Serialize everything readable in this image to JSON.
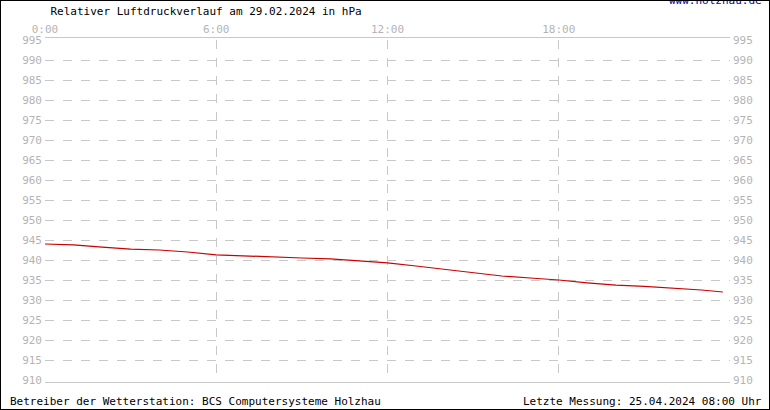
{
  "chart_data": {
    "type": "line",
    "title": "Relativer Luftdruckverlauf am 29.02.2024 in hPa",
    "annotations": [
      "www.holzhau.de",
      "Betreiber der Wetterstation: BCS Computersysteme Holzhau",
      "Letzte Messung: 25.04.2024 08:00 Uhr"
    ],
    "x": [
      0,
      1,
      2,
      3,
      4,
      5,
      6,
      7,
      8,
      9,
      10,
      11,
      12,
      13,
      14,
      15,
      16,
      17,
      18,
      19,
      20,
      21,
      22,
      23,
      23.75
    ],
    "series": [
      {
        "color": "#cc0000",
        "values": [
          944,
          943.8,
          943.2,
          942.7,
          942.5,
          942,
          941.3,
          941,
          940.8,
          940.5,
          940.3,
          939.8,
          939.3,
          938.5,
          937.7,
          936.8,
          936,
          935.5,
          935,
          934.3,
          933.7,
          933.4,
          933,
          932.5,
          932
        ]
      }
    ],
    "xlim": [
      0,
      24
    ],
    "xticks": [
      {
        "value": 0,
        "label": "0:00"
      },
      {
        "value": 6,
        "label": "6:00"
      },
      {
        "value": 12,
        "label": "12:00"
      },
      {
        "value": 18,
        "label": "18:00"
      }
    ],
    "ylim": [
      910,
      995
    ],
    "yticks": [
      910,
      915,
      920,
      925,
      930,
      935,
      940,
      945,
      950,
      955,
      960,
      965,
      970,
      975,
      980,
      985,
      990,
      995
    ],
    "y2lim": [
      910,
      995
    ],
    "y2ticks": [
      910,
      915,
      920,
      925,
      930,
      935,
      940,
      945,
      950,
      955,
      960,
      965,
      970,
      975,
      980,
      985,
      990,
      995
    ],
    "grid": true
  }
}
